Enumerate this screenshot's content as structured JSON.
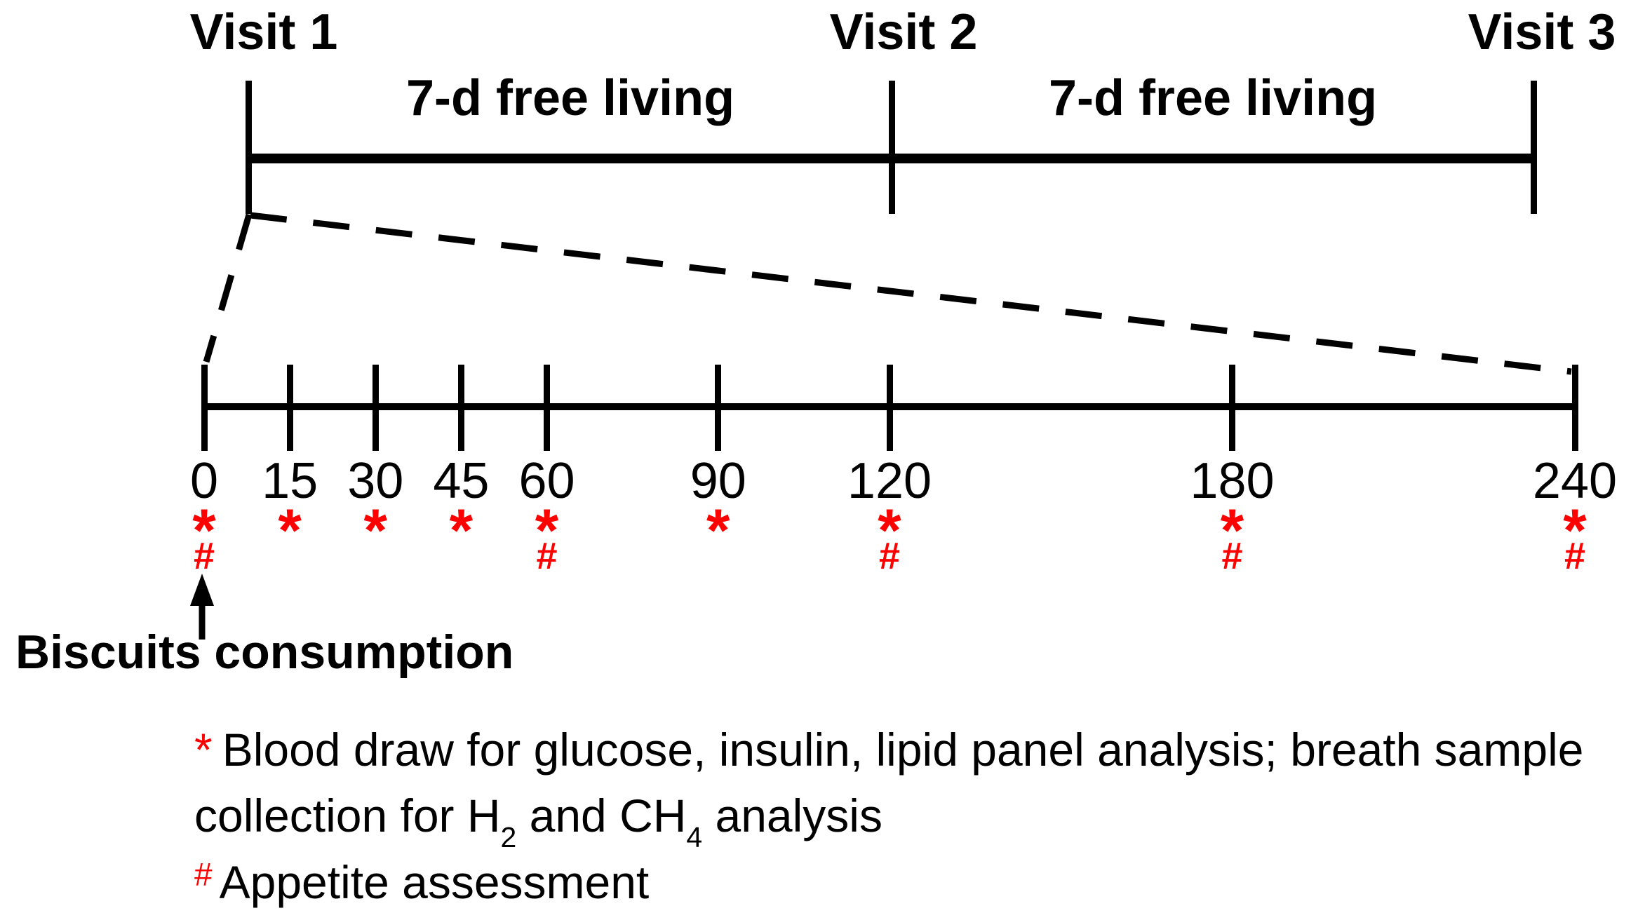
{
  "figure": {
    "visits": [
      {
        "label": "Visit 1"
      },
      {
        "label": "Visit 2"
      },
      {
        "label": "Visit 3"
      }
    ],
    "periods": [
      {
        "label": "7-d free living"
      },
      {
        "label": "7-d free living"
      }
    ],
    "timeline": {
      "max_minutes": 240,
      "ticks": [
        {
          "minutes": 0,
          "label": "0",
          "star_symbol": "*",
          "hash_symbol": "#"
        },
        {
          "minutes": 15,
          "label": "15",
          "star_symbol": "*"
        },
        {
          "minutes": 30,
          "label": "30",
          "star_symbol": "*"
        },
        {
          "minutes": 45,
          "label": "45",
          "star_symbol": "*"
        },
        {
          "minutes": 60,
          "label": "60",
          "star_symbol": "*",
          "hash_symbol": "#"
        },
        {
          "minutes": 90,
          "label": "90",
          "star_symbol": "*"
        },
        {
          "minutes": 120,
          "label": "120",
          "star_symbol": "*",
          "hash_symbol": "#"
        },
        {
          "minutes": 180,
          "label": "180",
          "star_symbol": "*",
          "hash_symbol": "#"
        },
        {
          "minutes": 240,
          "label": "240",
          "star_symbol": "*",
          "hash_symbol": "#"
        }
      ]
    },
    "annotation": {
      "label": "Biscuits consumption"
    },
    "legend": {
      "star": {
        "symbol": "*",
        "text": "Blood draw for glucose, insulin, lipid panel analysis; breath sample"
      },
      "star_line2": {
        "prefix": "collection for H",
        "sub1": "2",
        "mid": " and CH",
        "sub2": "4",
        "suffix": " analysis"
      },
      "hash": {
        "symbol": "#",
        "text": "Appetite assessment"
      }
    },
    "colors": {
      "ink": "#000000",
      "marker_red": "#ff0000",
      "background": "#ffffff"
    }
  }
}
